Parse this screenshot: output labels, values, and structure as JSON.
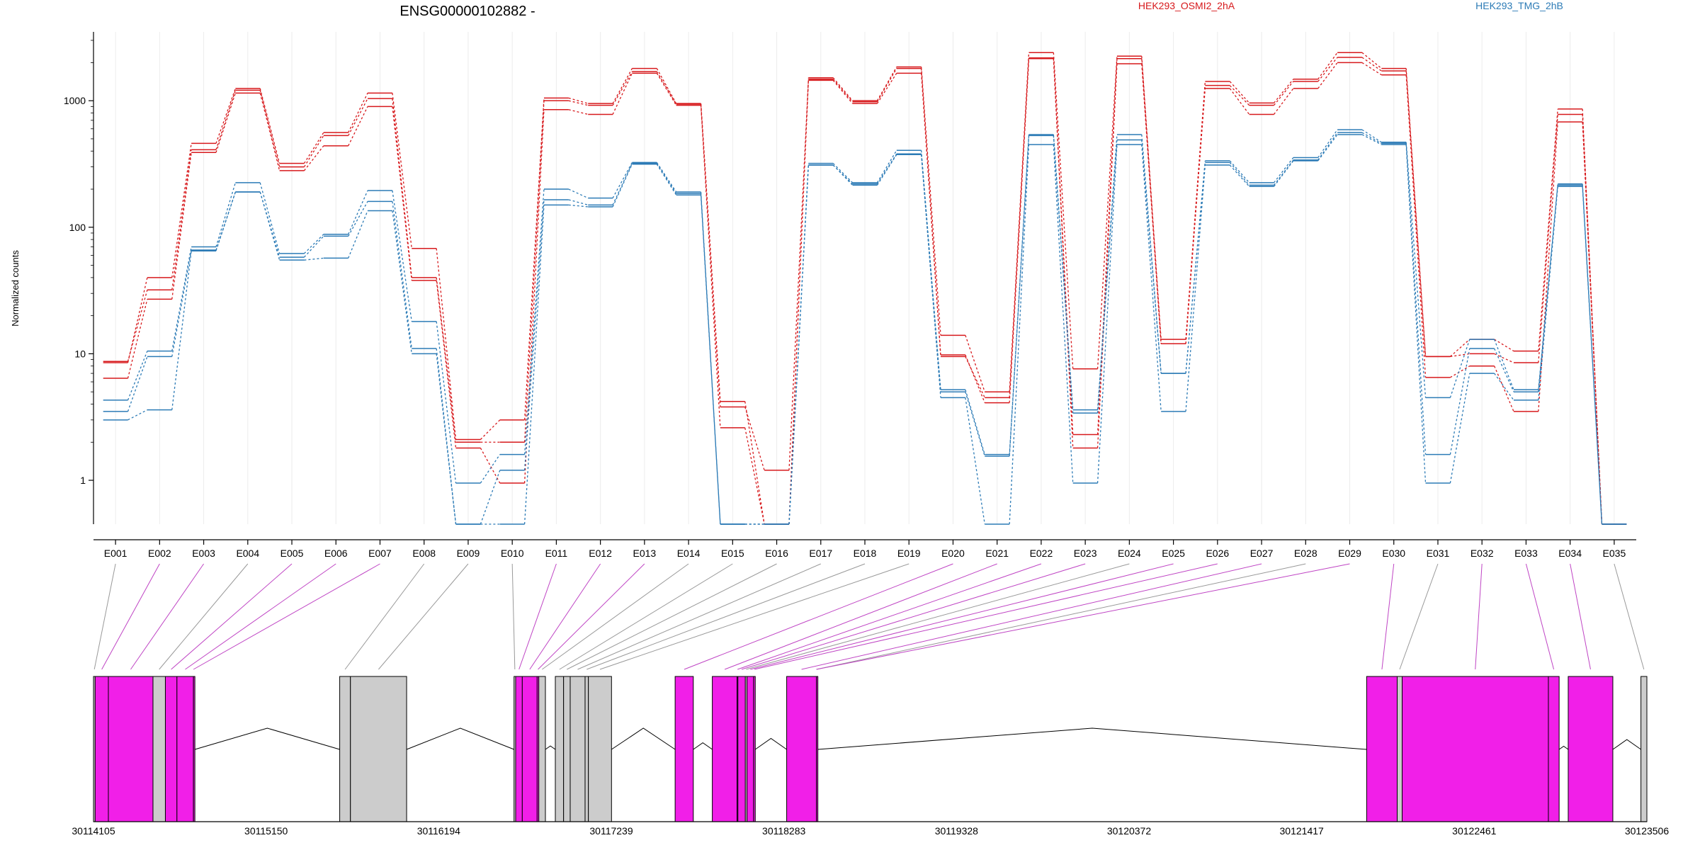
{
  "chart_data": {
    "type": "line",
    "title": "ENSG00000102882 -",
    "ylabel": "Normalized counts",
    "yscale": "log",
    "ylim": [
      0.45,
      3500
    ],
    "yticks": [
      {
        "value": 1,
        "label": "1"
      },
      {
        "value": 10,
        "label": "10"
      },
      {
        "value": 100,
        "label": "100"
      },
      {
        "value": 1000,
        "label": "1000"
      }
    ],
    "categories": [
      "E001",
      "E002",
      "E003",
      "E004",
      "E005",
      "E006",
      "E007",
      "E008",
      "E009",
      "E010",
      "E011",
      "E012",
      "E013",
      "E014",
      "E015",
      "E016",
      "E017",
      "E018",
      "E019",
      "E020",
      "E021",
      "E022",
      "E023",
      "E024",
      "E025",
      "E026",
      "E027",
      "E028",
      "E029",
      "E030",
      "E031",
      "E032",
      "E033",
      "E034",
      "E035"
    ],
    "legend": [
      {
        "label": "HEK293_OSMI2_2hA",
        "color": "#d7191c"
      },
      {
        "label": "HEK293_TMG_2hB",
        "color": "#2c7bb6"
      }
    ],
    "series": [
      {
        "name": "HEK293_OSMI2_2hA",
        "color": "#d7191c",
        "values": [
          8.5,
          40,
          460,
          1250,
          320,
          560,
          1150,
          68,
          2.1,
          3.0,
          1050,
          950,
          1800,
          950,
          4.2,
          0.45,
          1520,
          1000,
          1850,
          14,
          5,
          2400,
          7.6,
          2250,
          13,
          1420,
          960,
          1480,
          2400,
          1800,
          9.5,
          13,
          10.5,
          860,
          0.45
        ]
      },
      {
        "name": "HEK293_OSMI2_2hA",
        "color": "#d7191c",
        "values": [
          8.7,
          32,
          410,
          1210,
          300,
          530,
          1040,
          40,
          2.0,
          2.0,
          1000,
          920,
          1700,
          940,
          3.8,
          1.2,
          1480,
          980,
          1800,
          9.5,
          4.5,
          2150,
          2.3,
          2150,
          12,
          1320,
          920,
          1420,
          2200,
          1720,
          9.5,
          10,
          8.5,
          780,
          0.45
        ]
      },
      {
        "name": "HEK293_OSMI2_2hA",
        "color": "#d7191c",
        "values": [
          6.4,
          27,
          390,
          1150,
          280,
          440,
          900,
          38,
          1.8,
          0.95,
          850,
          780,
          1650,
          920,
          2.6,
          0.45,
          1450,
          950,
          1650,
          9.8,
          4.1,
          2180,
          1.8,
          1960,
          12,
          1250,
          780,
          1250,
          2000,
          1600,
          6.5,
          8,
          3.5,
          680,
          0.45
        ]
      },
      {
        "name": "HEK293_TMG_2hB",
        "color": "#2c7bb6",
        "values": [
          4.3,
          10.5,
          70,
          225,
          62,
          88,
          195,
          18,
          0.95,
          1.6,
          200,
          170,
          325,
          190,
          0.45,
          0.45,
          320,
          225,
          405,
          5.2,
          1.6,
          540,
          3.6,
          540,
          7,
          335,
          225,
          355,
          590,
          470,
          4.5,
          13,
          5.2,
          220,
          0.45
        ]
      },
      {
        "name": "HEK293_TMG_2hB",
        "color": "#2c7bb6",
        "values": [
          3.5,
          9.5,
          66,
          190,
          58,
          85,
          160,
          11,
          0.45,
          1.2,
          165,
          150,
          320,
          185,
          0.45,
          0.45,
          310,
          220,
          380,
          5,
          1.55,
          530,
          3.4,
          490,
          7,
          325,
          215,
          340,
          560,
          460,
          1.6,
          11,
          5,
          215,
          0.45
        ]
      },
      {
        "name": "HEK293_TMG_2hB",
        "color": "#2c7bb6",
        "values": [
          3.0,
          3.6,
          65,
          190,
          55,
          57,
          135,
          10,
          0.45,
          0.45,
          150,
          145,
          315,
          180,
          0.45,
          0.45,
          310,
          215,
          375,
          4.5,
          0.45,
          450,
          0.95,
          450,
          3.5,
          310,
          210,
          335,
          540,
          450,
          0.95,
          7,
          4.3,
          210,
          0.45
        ]
      }
    ],
    "genome": {
      "start": 30114105,
      "end": 30123506,
      "ticks": [
        "30114105",
        "30115150",
        "30116194",
        "30117239",
        "30118283",
        "30119328",
        "30120372",
        "30121417",
        "30122461",
        "30123506"
      ],
      "exons": [
        {
          "id": "E001",
          "start": 30114105,
          "end": 30114115,
          "sig": false
        },
        {
          "id": "E002",
          "start": 30114115,
          "end": 30114195,
          "sig": true
        },
        {
          "id": "E003",
          "start": 30114195,
          "end": 30114465,
          "sig": true
        },
        {
          "id": "E004",
          "start": 30114465,
          "end": 30114540,
          "sig": false
        },
        {
          "id": "E005",
          "start": 30114540,
          "end": 30114610,
          "sig": true
        },
        {
          "id": "E006",
          "start": 30114610,
          "end": 30114710,
          "sig": true
        },
        {
          "id": "E007",
          "start": 30114710,
          "end": 30114710,
          "sig": true
        },
        {
          "id": "E008",
          "start": 30115595,
          "end": 30115660,
          "sig": false
        },
        {
          "id": "E009",
          "start": 30115660,
          "end": 30116000,
          "sig": false
        },
        {
          "id": "E010",
          "start": 30116650,
          "end": 30116660,
          "sig": false
        },
        {
          "id": "E011",
          "start": 30116660,
          "end": 30116700,
          "sig": true
        },
        {
          "id": "E012",
          "start": 30116700,
          "end": 30116790,
          "sig": true
        },
        {
          "id": "E013",
          "start": 30116790,
          "end": 30116800,
          "sig": true
        },
        {
          "id": "E014",
          "start": 30116800,
          "end": 30116840,
          "sig": false
        },
        {
          "id": "E015",
          "start": 30116900,
          "end": 30116950,
          "sig": false
        },
        {
          "id": "E016",
          "start": 30116950,
          "end": 30116990,
          "sig": false
        },
        {
          "id": "E017",
          "start": 30116990,
          "end": 30117080,
          "sig": false
        },
        {
          "id": "E018",
          "start": 30117080,
          "end": 30117100,
          "sig": false
        },
        {
          "id": "E019",
          "start": 30117100,
          "end": 30117240,
          "sig": false
        },
        {
          "id": "E020",
          "start": 30117625,
          "end": 30117735,
          "sig": true
        },
        {
          "id": "E021",
          "start": 30117850,
          "end": 30118000,
          "sig": true
        },
        {
          "id": "E022",
          "start": 30118000,
          "end": 30118005,
          "sig": true
        },
        {
          "id": "E023",
          "start": 30118005,
          "end": 30118050,
          "sig": true
        },
        {
          "id": "E024",
          "start": 30118050,
          "end": 30118060,
          "sig": false
        },
        {
          "id": "E025",
          "start": 30118060,
          "end": 30118100,
          "sig": true
        },
        {
          "id": "E026",
          "start": 30118100,
          "end": 30118110,
          "sig": true
        },
        {
          "id": "E027",
          "start": 30118300,
          "end": 30118480,
          "sig": true
        },
        {
          "id": "E028",
          "start": 30118480,
          "end": 30118480,
          "sig": false
        },
        {
          "id": "E029",
          "start": 30118480,
          "end": 30118480,
          "sig": true
        },
        {
          "id": "E030",
          "start": 30121810,
          "end": 30121995,
          "sig": true
        },
        {
          "id": "E031",
          "start": 30121995,
          "end": 30122025,
          "sig": false
        },
        {
          "id": "E032",
          "start": 30122025,
          "end": 30122910,
          "sig": true
        },
        {
          "id": "E033",
          "start": 30122910,
          "end": 30122975,
          "sig": true
        },
        {
          "id": "E034",
          "start": 30123030,
          "end": 30123300,
          "sig": true
        },
        {
          "id": "E035",
          "start": 30123470,
          "end": 30123506,
          "sig": false
        }
      ]
    }
  }
}
